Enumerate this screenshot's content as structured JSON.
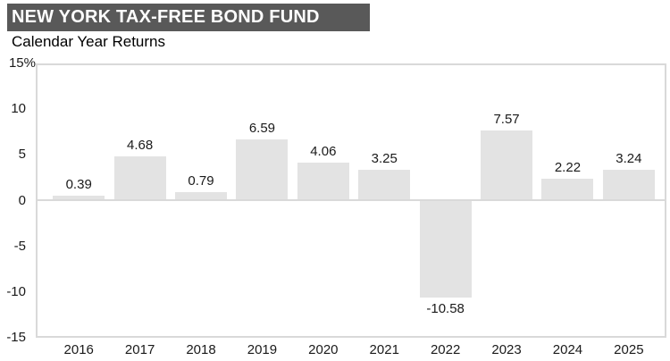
{
  "header": {
    "title": "NEW YORK TAX-FREE BOND FUND",
    "subtitle": "Calendar Year Returns"
  },
  "chart_data": {
    "type": "bar",
    "title": "NEW YORK TAX-FREE BOND FUND",
    "subtitle": "Calendar Year Returns",
    "categories": [
      "2016",
      "2017",
      "2018",
      "2019",
      "2020",
      "2021",
      "2022",
      "2023",
      "2024",
      "2025"
    ],
    "values": [
      0.39,
      4.68,
      0.79,
      6.59,
      4.06,
      3.25,
      -10.58,
      7.57,
      2.22,
      3.24
    ],
    "value_labels": [
      "0.39",
      "4.68",
      "0.79",
      "6.59",
      "4.06",
      "3.25",
      "-10.58",
      "7.57",
      "2.22",
      "3.24"
    ],
    "xlabel": "",
    "ylabel": "",
    "ylim": [
      -15,
      15
    ],
    "y_tick_labels": [
      "15%",
      "10",
      "5",
      "0",
      "-5",
      "-10",
      "-15"
    ],
    "y_tick_values": [
      15,
      10,
      5,
      0,
      -5,
      -10,
      -15
    ],
    "grid": "zero-line-only",
    "legend": "none"
  },
  "colors": {
    "title_bg": "#595959",
    "title_text": "#ffffff",
    "plot_border": "#d9d9d9",
    "zero_line": "#d9d9d9",
    "bar_fill": "#e3e3e3",
    "label_text": "#1a1a1a"
  }
}
